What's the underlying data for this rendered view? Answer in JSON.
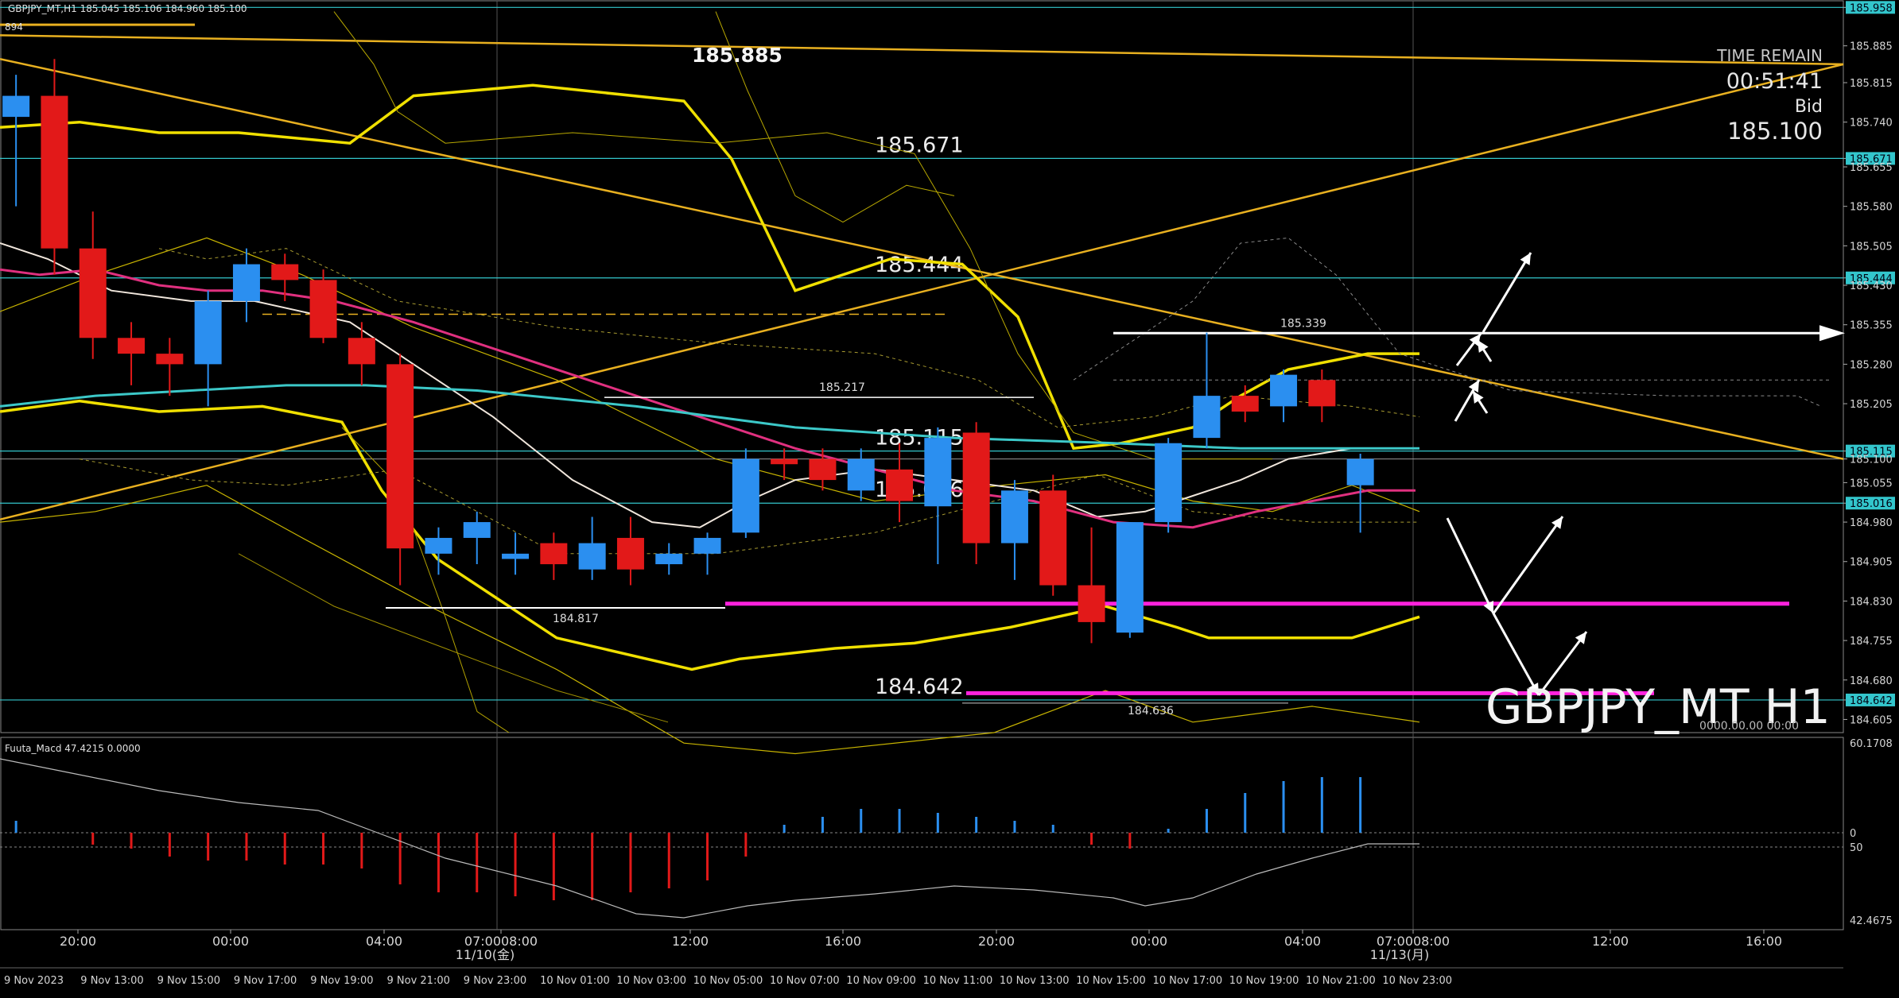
{
  "header": {
    "symbol_info": "GBPJPY_MT,H1  185.045 185.106 184.960 185.100",
    "left_stub": "894"
  },
  "watermark": {
    "symbol": "GBPJPY_MT H1",
    "sub": "0000.00.00 00:00"
  },
  "timer": {
    "label": "TIME REMAIN",
    "time": "00:51:41",
    "bid_label": "Bid",
    "bid": "185.100"
  },
  "chart_data": {
    "type": "candlestick",
    "ylim": [
      184.58,
      185.96
    ],
    "candles": [
      {
        "o": 185.75,
        "h": 185.83,
        "l": 185.58,
        "c": 185.79
      },
      {
        "o": 185.79,
        "h": 185.86,
        "l": 185.45,
        "c": 185.5
      },
      {
        "o": 185.5,
        "h": 185.57,
        "l": 185.29,
        "c": 185.33
      },
      {
        "o": 185.33,
        "h": 185.36,
        "l": 185.24,
        "c": 185.3
      },
      {
        "o": 185.3,
        "h": 185.33,
        "l": 185.22,
        "c": 185.28
      },
      {
        "o": 185.28,
        "h": 185.42,
        "l": 185.2,
        "c": 185.4
      },
      {
        "o": 185.4,
        "h": 185.5,
        "l": 185.36,
        "c": 185.47
      },
      {
        "o": 185.47,
        "h": 185.49,
        "l": 185.4,
        "c": 185.44
      },
      {
        "o": 185.44,
        "h": 185.46,
        "l": 185.32,
        "c": 185.33
      },
      {
        "o": 185.33,
        "h": 185.36,
        "l": 185.24,
        "c": 185.28
      },
      {
        "o": 185.28,
        "h": 185.3,
        "l": 184.86,
        "c": 184.93
      },
      {
        "o": 184.92,
        "h": 184.97,
        "l": 184.88,
        "c": 184.95
      },
      {
        "o": 184.95,
        "h": 185.0,
        "l": 184.9,
        "c": 184.98
      },
      {
        "o": 184.91,
        "h": 184.96,
        "l": 184.88,
        "c": 184.92
      },
      {
        "o": 184.94,
        "h": 184.96,
        "l": 184.87,
        "c": 184.9
      },
      {
        "o": 184.89,
        "h": 184.99,
        "l": 184.87,
        "c": 184.94
      },
      {
        "o": 184.95,
        "h": 184.99,
        "l": 184.86,
        "c": 184.89
      },
      {
        "o": 184.9,
        "h": 184.94,
        "l": 184.88,
        "c": 184.92
      },
      {
        "o": 184.92,
        "h": 184.96,
        "l": 184.88,
        "c": 184.95
      },
      {
        "o": 184.96,
        "h": 185.12,
        "l": 184.95,
        "c": 185.1
      },
      {
        "o": 185.1,
        "h": 185.12,
        "l": 185.06,
        "c": 185.09
      },
      {
        "o": 185.1,
        "h": 185.12,
        "l": 185.04,
        "c": 185.06
      },
      {
        "o": 185.04,
        "h": 185.12,
        "l": 185.02,
        "c": 185.1
      },
      {
        "o": 185.08,
        "h": 185.13,
        "l": 184.98,
        "c": 185.02
      },
      {
        "o": 185.01,
        "h": 185.16,
        "l": 184.9,
        "c": 185.14
      },
      {
        "o": 185.15,
        "h": 185.17,
        "l": 184.9,
        "c": 184.94
      },
      {
        "o": 184.94,
        "h": 185.06,
        "l": 184.87,
        "c": 185.04
      },
      {
        "o": 185.04,
        "h": 185.07,
        "l": 184.84,
        "c": 184.86
      },
      {
        "o": 184.86,
        "h": 184.97,
        "l": 184.75,
        "c": 184.79
      },
      {
        "o": 184.77,
        "h": 184.98,
        "l": 184.76,
        "c": 184.98
      },
      {
        "o": 184.98,
        "h": 185.14,
        "l": 184.96,
        "c": 185.13
      },
      {
        "o": 185.14,
        "h": 185.34,
        "l": 185.12,
        "c": 185.22
      },
      {
        "o": 185.22,
        "h": 185.24,
        "l": 185.17,
        "c": 185.19
      },
      {
        "o": 185.2,
        "h": 185.27,
        "l": 185.17,
        "c": 185.26
      },
      {
        "o": 185.25,
        "h": 185.27,
        "l": 185.17,
        "c": 185.2
      },
      {
        "o": 185.05,
        "h": 185.11,
        "l": 184.96,
        "c": 185.1
      }
    ],
    "price_axis": [
      "185.958",
      "185.885",
      "185.815",
      "185.740",
      "185.671",
      "185.655",
      "185.580",
      "185.505",
      "185.444",
      "185.430",
      "185.355",
      "185.280",
      "185.205",
      "185.115",
      "185.100",
      "185.055",
      "185.016",
      "184.980",
      "184.905",
      "184.830",
      "184.755",
      "184.680",
      "184.642",
      "184.605"
    ],
    "price_axis_badges": [
      "185.958",
      "185.671",
      "185.444",
      "185.115",
      "185.016",
      "184.642"
    ],
    "hlines": [
      {
        "price": 185.958,
        "label": "",
        "color": "#33c6cc"
      },
      {
        "price": 185.671,
        "label": "185.671",
        "color": "#33c6cc"
      },
      {
        "price": 185.444,
        "label": "185.444",
        "color": "#33c6cc"
      },
      {
        "price": 185.115,
        "label": "185.115",
        "color": "#33c6cc"
      },
      {
        "price": 185.016,
        "label": "185.016",
        "color": "#33c6cc"
      },
      {
        "price": 184.642,
        "label": "184.642",
        "color": "#33c6cc"
      }
    ],
    "level_labels": [
      {
        "text": "185.885",
        "price": 185.885
      },
      {
        "text": "185.339",
        "price": 185.339
      },
      {
        "text": "185.217",
        "price": 185.217
      },
      {
        "text": "184.817",
        "price": 184.817
      },
      {
        "text": "184.636",
        "price": 184.636
      }
    ],
    "time_axis": [
      "20:00",
      "00:00",
      "04:00",
      "07:0008:00",
      "12:00",
      "16:00",
      "20:00",
      "00:00",
      "04:00",
      "07:0008:00",
      "12:00",
      "16:00"
    ],
    "time_axis_sub": [
      "11/10(金)",
      "11/13(月)"
    ],
    "date_axis": [
      "9 Nov 2023",
      "9 Nov 13:00",
      "9 Nov 15:00",
      "9 Nov 17:00",
      "9 Nov 19:00",
      "9 Nov 21:00",
      "9 Nov 23:00",
      "10 Nov 01:00",
      "10 Nov 03:00",
      "10 Nov 05:00",
      "10 Nov 07:00",
      "10 Nov 09:00",
      "10 Nov 11:00",
      "10 Nov 13:00",
      "10 Nov 15:00",
      "10 Nov 17:00",
      "10 Nov 19:00",
      "10 Nov 21:00",
      "10 Nov 23:00"
    ],
    "macd": {
      "label": "Fuuta_Macd 47.4215  0.0000",
      "axis": [
        "60.1708",
        "0",
        "50",
        "42.4675"
      ],
      "hist": [
        3,
        0,
        -3,
        -4,
        -6,
        -7,
        -7,
        -8,
        -8,
        -9,
        -13,
        -15,
        -15,
        -16,
        -17,
        -17,
        -15,
        -14,
        -12,
        -6,
        2,
        4,
        6,
        6,
        5,
        4,
        3,
        2,
        -3,
        -4,
        1,
        6,
        10,
        13,
        14,
        14
      ]
    },
    "colors": {
      "bull": "#2b8ff0",
      "bear": "#e21919",
      "bb": "#f0e000",
      "ma_pink": "#e0307f",
      "ma_cyan": "#3cc8c8",
      "ma_white": "#f0e6dc",
      "trend": "#e8b020",
      "magenta": "#ff22dd"
    }
  }
}
